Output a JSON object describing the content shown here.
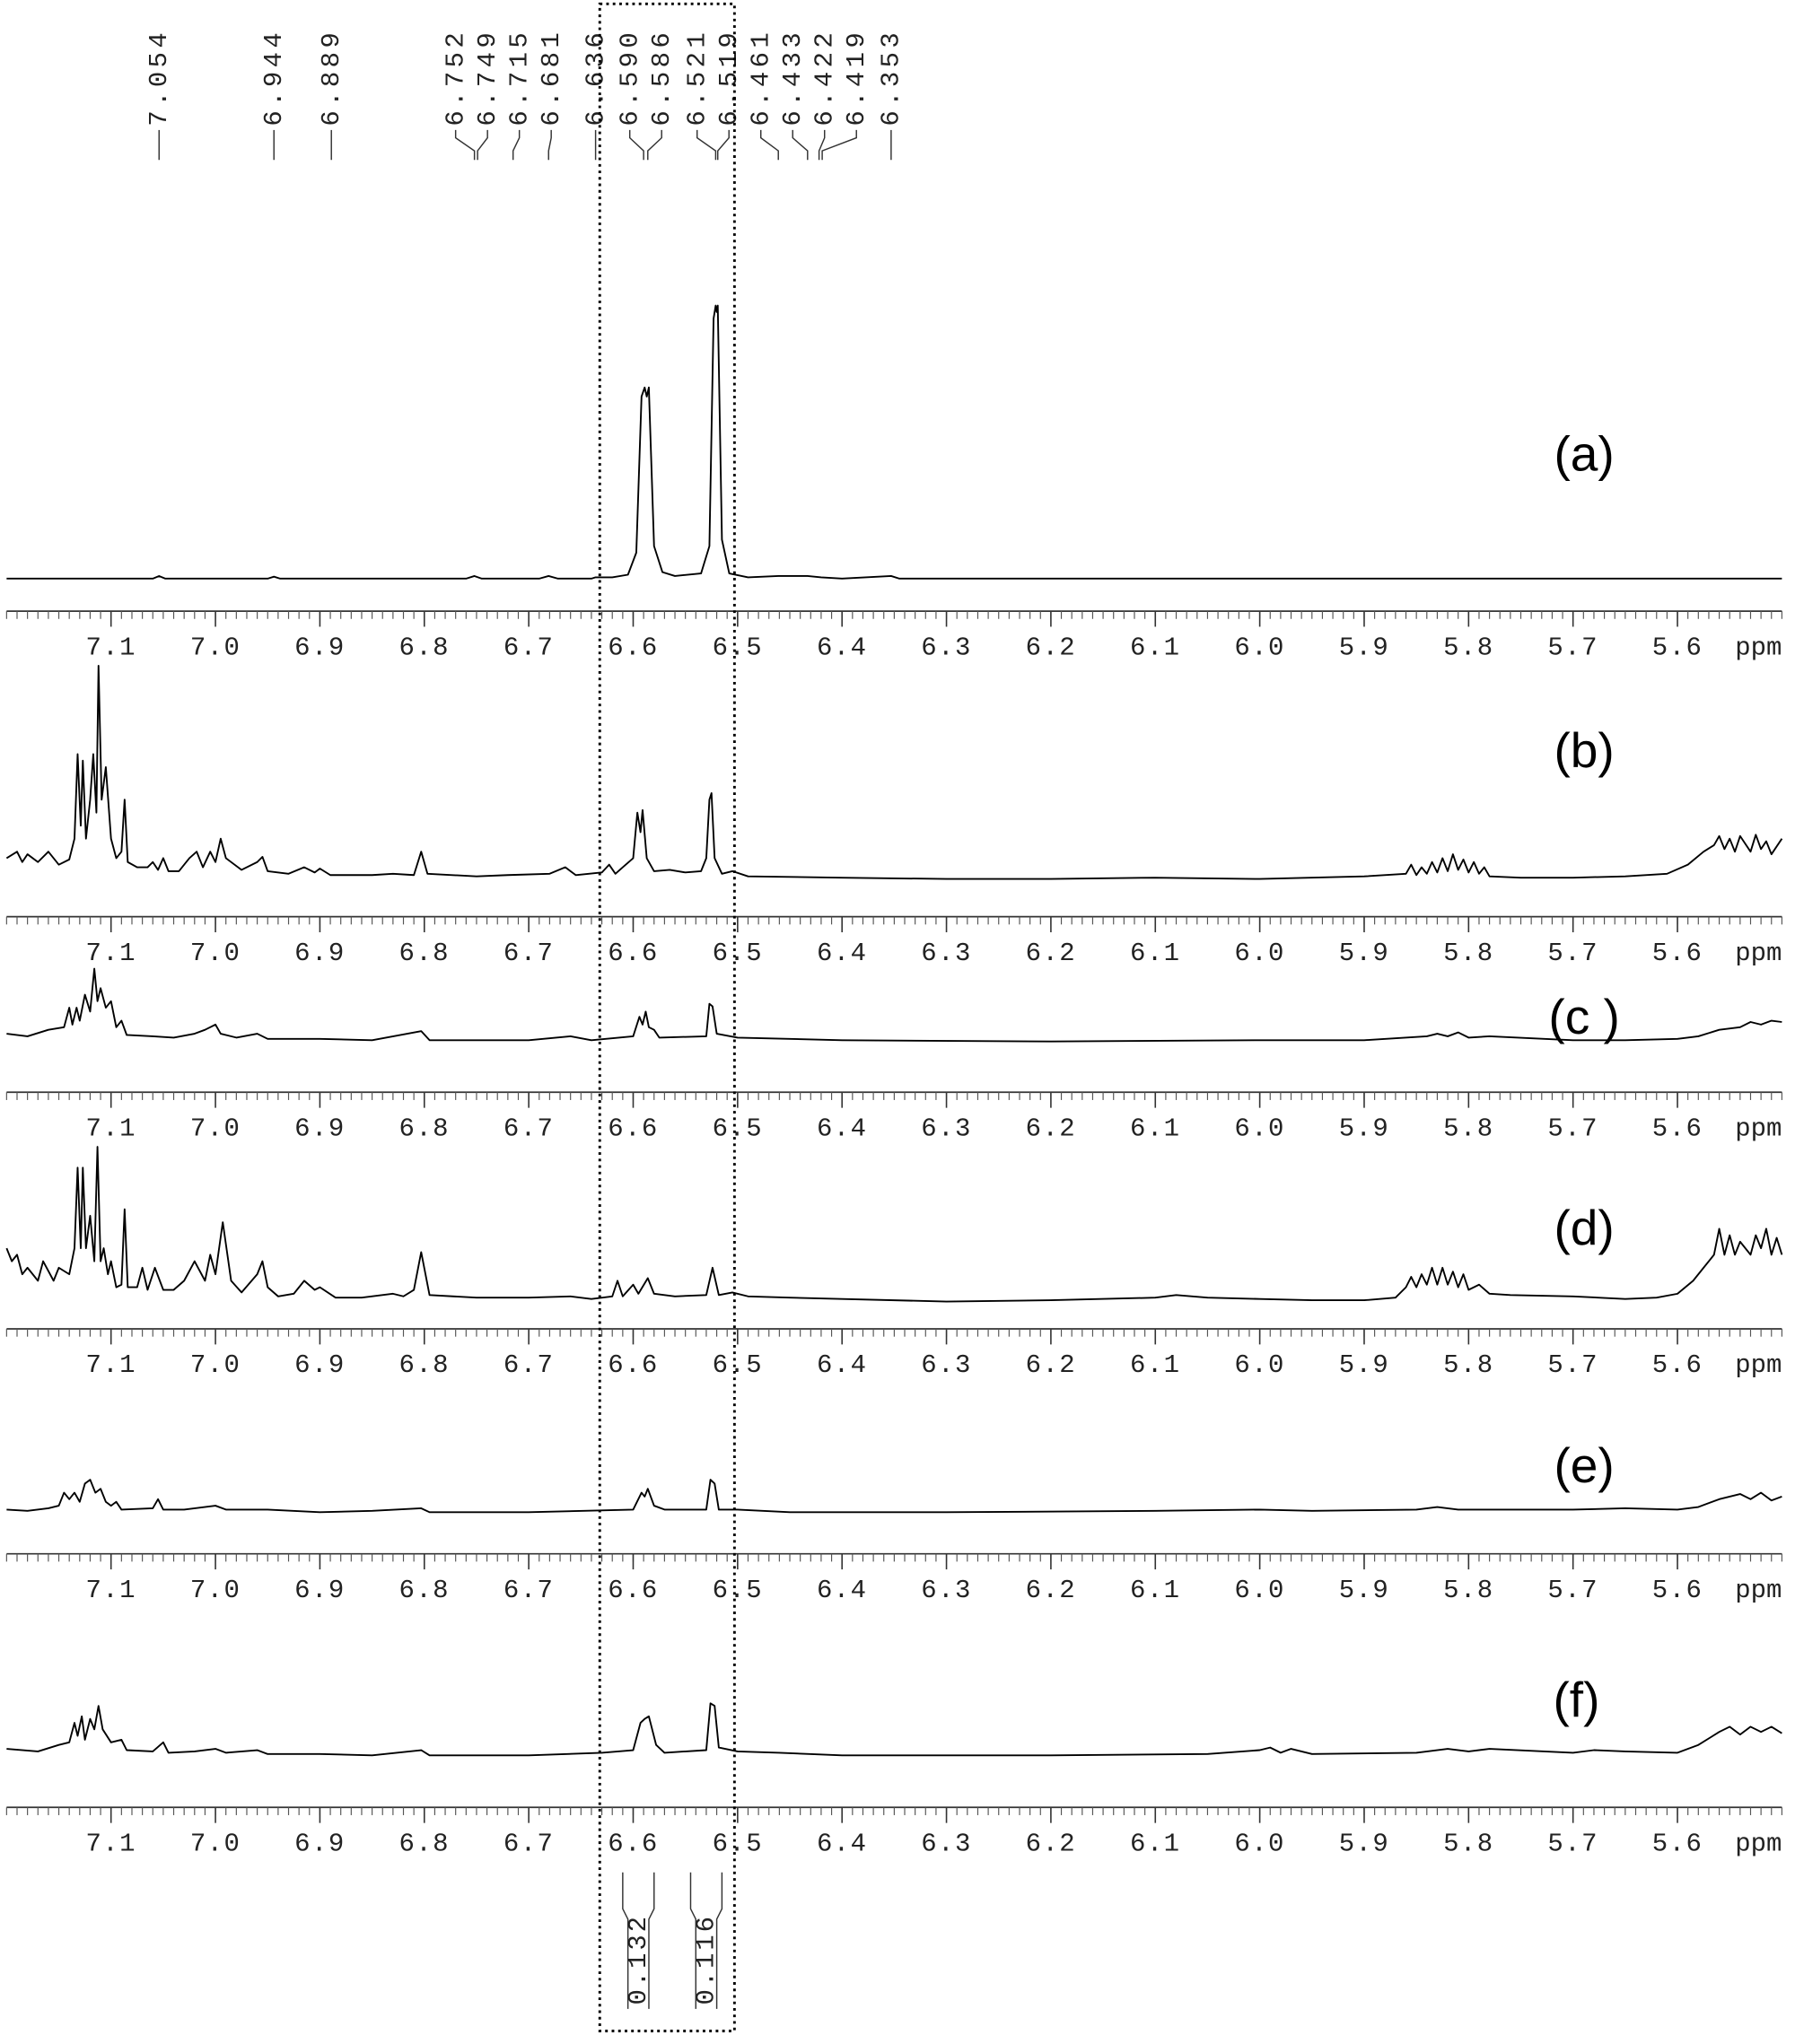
{
  "highlight_range": [
    6.632,
    6.503
  ],
  "chart_data": [
    {
      "type": "line",
      "label": "(a)",
      "xlabel": "ppm",
      "color": "#000000",
      "xlim": [
        7.2,
        5.5
      ],
      "ylim": [
        -10,
        220
      ],
      "minor_tick_step": 0.01,
      "xticks": [
        7.1,
        {
          "value": 7,
          "label": "7.0"
        },
        6.9,
        6.8,
        6.7,
        6.6,
        6.5,
        6.4,
        6.3,
        6.2,
        6.1,
        {
          "value": 6,
          "label": "6.0"
        },
        5.9,
        5.8,
        5.7,
        5.6
      ],
      "peak_labels": [
        7.054,
        6.944,
        6.889,
        6.752,
        6.749,
        6.715,
        6.681,
        6.636,
        {
          "value": 6.59,
          "label": "6.590"
        },
        6.586,
        6.521,
        6.519,
        6.461,
        6.433,
        6.422,
        6.419,
        6.353
      ],
      "x": [
        7.2,
        7.06,
        7.054,
        7.048,
        6.95,
        6.944,
        6.938,
        6.76,
        6.752,
        6.745,
        6.69,
        6.681,
        6.672,
        6.64,
        6.636,
        6.62,
        6.605,
        6.597,
        6.592,
        6.589,
        6.587,
        6.585,
        6.58,
        6.572,
        6.56,
        6.535,
        6.527,
        6.523,
        6.521,
        6.52,
        6.519,
        6.515,
        6.508,
        6.49,
        6.461,
        6.433,
        6.42,
        6.4,
        6.353,
        6.345,
        5.5
      ],
      "values": [
        0,
        0,
        2,
        0,
        0,
        1.5,
        0,
        0,
        2,
        0,
        0,
        2,
        0,
        0,
        1,
        1,
        3,
        20,
        140,
        147,
        140,
        147,
        25,
        5,
        2,
        4,
        25,
        200,
        210,
        205,
        210,
        30,
        4,
        1,
        2,
        2,
        1,
        0,
        2,
        0,
        0
      ]
    },
    {
      "type": "line",
      "label": "(b)",
      "xlabel": "ppm",
      "color": "#000000",
      "xlim": [
        7.2,
        5.5
      ],
      "ylim": [
        -15,
        175
      ],
      "minor_tick_step": 0.01,
      "xticks": [
        7.1,
        {
          "value": 7,
          "label": "7.0"
        },
        6.9,
        6.8,
        6.7,
        6.6,
        6.5,
        6.4,
        6.3,
        6.2,
        6.1,
        {
          "value": 6,
          "label": "6.0"
        },
        5.9,
        5.8,
        5.7,
        5.6
      ],
      "x": [
        7.2,
        7.19,
        7.185,
        7.18,
        7.17,
        7.16,
        7.15,
        7.14,
        7.135,
        7.132,
        7.129,
        7.127,
        7.124,
        7.12,
        7.117,
        7.114,
        7.112,
        7.109,
        7.105,
        7.1,
        7.095,
        7.09,
        7.087,
        7.084,
        7.075,
        7.065,
        7.06,
        7.055,
        7.05,
        7.045,
        7.035,
        7.025,
        7.018,
        7.012,
        7.005,
        7.0,
        6.995,
        6.99,
        6.975,
        6.96,
        6.955,
        6.95,
        6.93,
        6.915,
        6.905,
        6.9,
        6.89,
        6.85,
        6.83,
        6.81,
        6.803,
        6.797,
        6.75,
        6.72,
        6.68,
        6.665,
        6.655,
        6.63,
        6.623,
        6.617,
        6.61,
        6.6,
        6.596,
        6.593,
        6.591,
        6.587,
        6.58,
        6.565,
        6.55,
        6.535,
        6.53,
        6.527,
        6.525,
        6.522,
        6.515,
        6.505,
        6.49,
        6.4,
        6.3,
        6.2,
        6.1,
        6,
        5.9,
        5.86,
        5.855,
        5.85,
        5.845,
        5.84,
        5.835,
        5.83,
        5.825,
        5.82,
        5.815,
        5.81,
        5.805,
        5.8,
        5.795,
        5.79,
        5.785,
        5.78,
        5.75,
        5.7,
        5.65,
        5.61,
        5.59,
        5.575,
        5.565,
        5.56,
        5.555,
        5.55,
        5.545,
        5.54,
        5.53,
        5.525,
        5.52,
        5.515,
        5.51,
        5.5
      ],
      "values": [
        15,
        20,
        12,
        18,
        12,
        20,
        10,
        14,
        30,
        95,
        40,
        90,
        30,
        60,
        95,
        50,
        163,
        60,
        85,
        30,
        15,
        20,
        60,
        12,
        8,
        8,
        12,
        6,
        15,
        5,
        5,
        15,
        20,
        8,
        20,
        12,
        30,
        15,
        6,
        12,
        16,
        5,
        3,
        8,
        4,
        7,
        2,
        2,
        3,
        2,
        20,
        3,
        1,
        2,
        3,
        8,
        2,
        4,
        10,
        3,
        8,
        15,
        50,
        35,
        52,
        15,
        5,
        6,
        4,
        5,
        15,
        60,
        65,
        15,
        3,
        5,
        1,
        0,
        -1,
        -1,
        0,
        -1,
        1,
        3,
        10,
        2,
        8,
        3,
        12,
        4,
        15,
        5,
        18,
        6,
        14,
        4,
        12,
        3,
        8,
        1,
        0,
        0,
        1,
        3,
        10,
        20,
        25,
        32,
        22,
        30,
        20,
        32,
        20,
        33,
        22,
        28,
        18,
        30
      ]
    },
    {
      "type": "line",
      "label": "(c )",
      "xlabel": "ppm",
      "color": "#000000",
      "xlim": [
        7.2,
        5.5
      ],
      "ylim": [
        -15,
        60
      ],
      "minor_tick_step": 0.01,
      "xticks": [
        7.1,
        {
          "value": 7,
          "label": "7.0"
        },
        6.9,
        6.8,
        6.7,
        6.6,
        6.5,
        6.4,
        6.3,
        6.2,
        6.1,
        {
          "value": 6,
          "label": "6.0"
        },
        5.9,
        5.8,
        5.7,
        5.6
      ],
      "x": [
        7.2,
        7.18,
        7.16,
        7.145,
        7.14,
        7.137,
        7.133,
        7.13,
        7.125,
        7.12,
        7.116,
        7.113,
        7.11,
        7.105,
        7.1,
        7.095,
        7.09,
        7.085,
        7.06,
        7.04,
        7.02,
        7.01,
        7.0,
        6.995,
        6.98,
        6.96,
        6.95,
        6.9,
        6.85,
        6.803,
        6.795,
        6.7,
        6.66,
        6.64,
        6.6,
        6.594,
        6.591,
        6.588,
        6.585,
        6.58,
        6.575,
        6.53,
        6.527,
        6.524,
        6.52,
        6.5,
        6.4,
        6.2,
        6,
        5.9,
        5.84,
        5.83,
        5.82,
        5.81,
        5.8,
        5.78,
        5.7,
        5.65,
        5.6,
        5.58,
        5.56,
        5.54,
        5.53,
        5.52,
        5.51,
        5.5
      ],
      "values": [
        5,
        3,
        8,
        10,
        25,
        12,
        25,
        15,
        35,
        22,
        55,
        30,
        40,
        25,
        30,
        10,
        15,
        4,
        3,
        2,
        5,
        8,
        12,
        5,
        2,
        5,
        1,
        1,
        0,
        7,
        0,
        0,
        3,
        0,
        3,
        18,
        12,
        22,
        10,
        8,
        2,
        3,
        28,
        26,
        5,
        2,
        0,
        -1,
        0,
        0,
        3,
        5,
        3,
        6,
        2,
        3,
        0,
        0,
        1,
        3,
        8,
        10,
        14,
        12,
        15,
        14
      ]
    },
    {
      "type": "line",
      "label": "(d)",
      "xlabel": "ppm",
      "color": "#000000",
      "xlim": [
        7.2,
        5.5
      ],
      "ylim": [
        -10,
        130
      ],
      "minor_tick_step": 0.01,
      "xticks": [
        7.1,
        {
          "value": 7,
          "label": "7.0"
        },
        6.9,
        6.8,
        6.7,
        6.6,
        6.5,
        6.4,
        6.3,
        6.2,
        6.1,
        {
          "value": 6,
          "label": "6.0"
        },
        5.9,
        5.8,
        5.7,
        5.6
      ],
      "x": [
        7.2,
        7.195,
        7.19,
        7.185,
        7.18,
        7.17,
        7.165,
        7.155,
        7.15,
        7.14,
        7.135,
        7.132,
        7.129,
        7.127,
        7.124,
        7.12,
        7.116,
        7.113,
        7.11,
        7.107,
        7.103,
        7.1,
        7.095,
        7.09,
        7.087,
        7.084,
        7.075,
        7.07,
        7.065,
        7.058,
        7.05,
        7.04,
        7.03,
        7.02,
        7.01,
        7.005,
        7.0,
        6.993,
        6.985,
        6.975,
        6.96,
        6.955,
        6.95,
        6.94,
        6.925,
        6.915,
        6.905,
        6.9,
        6.885,
        6.86,
        6.83,
        6.82,
        6.81,
        6.803,
        6.795,
        6.75,
        6.7,
        6.66,
        6.64,
        6.62,
        6.615,
        6.61,
        6.6,
        6.595,
        6.586,
        6.58,
        6.56,
        6.53,
        6.524,
        6.518,
        6.505,
        6.49,
        6.45,
        6.4,
        6.3,
        6.2,
        6.1,
        6.08,
        6.05,
        6,
        5.95,
        5.9,
        5.87,
        5.86,
        5.855,
        5.85,
        5.845,
        5.84,
        5.835,
        5.83,
        5.825,
        5.82,
        5.815,
        5.81,
        5.805,
        5.8,
        5.79,
        5.78,
        5.76,
        5.7,
        5.65,
        5.62,
        5.6,
        5.585,
        5.575,
        5.565,
        5.56,
        5.555,
        5.55,
        5.545,
        5.54,
        5.53,
        5.525,
        5.52,
        5.515,
        5.51,
        5.505,
        5.5
      ],
      "values": [
        40,
        30,
        35,
        20,
        25,
        15,
        30,
        15,
        25,
        20,
        40,
        102,
        40,
        102,
        40,
        65,
        30,
        118,
        30,
        40,
        20,
        30,
        10,
        12,
        70,
        10,
        10,
        25,
        8,
        25,
        8,
        8,
        15,
        30,
        15,
        35,
        20,
        60,
        15,
        6,
        20,
        30,
        10,
        3,
        5,
        15,
        8,
        10,
        2,
        2,
        5,
        3,
        8,
        37,
        4,
        2,
        2,
        3,
        1,
        3,
        15,
        3,
        12,
        5,
        17,
        5,
        3,
        4,
        25,
        4,
        6,
        3,
        2,
        1,
        -1,
        0,
        2,
        4,
        2,
        1,
        0,
        0,
        2,
        10,
        18,
        10,
        20,
        12,
        25,
        12,
        25,
        12,
        22,
        10,
        20,
        8,
        12,
        5,
        4,
        3,
        1,
        2,
        5,
        15,
        25,
        35,
        55,
        35,
        50,
        35,
        45,
        35,
        50,
        40,
        55,
        35,
        48,
        35
      ]
    },
    {
      "type": "line",
      "label": "(e)",
      "xlabel": "ppm",
      "color": "#000000",
      "xlim": [
        7.2,
        5.5
      ],
      "ylim": [
        -12,
        43
      ],
      "minor_tick_step": 0.01,
      "xticks": [
        7.1,
        {
          "value": 7,
          "label": "7.0"
        },
        6.9,
        6.8,
        6.7,
        6.6,
        6.5,
        6.4,
        6.3,
        6.2,
        6.1,
        {
          "value": 6,
          "label": "6.0"
        },
        5.9,
        5.8,
        5.7,
        5.6
      ],
      "x": [
        7.2,
        7.18,
        7.16,
        7.15,
        7.145,
        7.14,
        7.135,
        7.13,
        7.125,
        7.12,
        7.115,
        7.11,
        7.105,
        7.1,
        7.095,
        7.09,
        7.06,
        7.055,
        7.05,
        7.03,
        7.0,
        6.99,
        6.95,
        6.9,
        6.85,
        6.803,
        6.795,
        6.7,
        6.6,
        6.592,
        6.589,
        6.586,
        6.58,
        6.57,
        6.53,
        6.526,
        6.522,
        6.518,
        6.5,
        6.45,
        6.3,
        6.1,
        6,
        5.95,
        5.85,
        5.83,
        5.81,
        5.7,
        5.65,
        5.6,
        5.58,
        5.56,
        5.54,
        5.53,
        5.52,
        5.51,
        5.5
      ],
      "values": [
        2,
        1,
        3,
        5,
        15,
        10,
        15,
        8,
        22,
        25,
        15,
        18,
        8,
        5,
        8,
        2,
        3,
        10,
        2,
        2,
        5,
        2,
        2,
        0,
        1,
        3,
        0,
        0,
        2,
        15,
        12,
        18,
        5,
        2,
        2,
        25,
        22,
        2,
        2,
        0,
        0,
        1,
        2,
        1,
        2,
        4,
        2,
        2,
        3,
        2,
        4,
        10,
        14,
        10,
        15,
        9,
        12
      ]
    },
    {
      "type": "line",
      "label": "(f)",
      "xlabel": "ppm",
      "color": "#000000",
      "xlim": [
        7.2,
        5.5
      ],
      "ylim": [
        -10,
        50
      ],
      "minor_tick_step": 0.01,
      "xticks": [
        7.1,
        {
          "value": 7,
          "label": "7.0"
        },
        6.9,
        6.8,
        6.7,
        6.6,
        6.5,
        6.4,
        6.3,
        6.2,
        6.1,
        {
          "value": 6,
          "label": "6.0"
        },
        5.9,
        5.8,
        5.7,
        5.6
      ],
      "integrals": [
        {
          "value": 0.132,
          "range": [
            6.61,
            6.58
          ]
        },
        {
          "value": 0.116,
          "range": [
            6.545,
            6.515
          ]
        }
      ],
      "x": [
        7.2,
        7.17,
        7.15,
        7.14,
        7.135,
        7.132,
        7.128,
        7.125,
        7.12,
        7.116,
        7.112,
        7.108,
        7.1,
        7.09,
        7.085,
        7.06,
        7.05,
        7.045,
        7.02,
        7.0,
        6.99,
        6.96,
        6.95,
        6.9,
        6.85,
        6.803,
        6.795,
        6.7,
        6.63,
        6.6,
        6.593,
        6.589,
        6.585,
        6.578,
        6.57,
        6.53,
        6.526,
        6.522,
        6.518,
        6.5,
        6.46,
        6.4,
        6.2,
        6.05,
        6,
        5.99,
        5.98,
        5.97,
        5.95,
        5.85,
        5.82,
        5.8,
        5.78,
        5.7,
        5.68,
        5.65,
        5.6,
        5.58,
        5.56,
        5.55,
        5.54,
        5.53,
        5.52,
        5.51,
        5.5
      ],
      "values": [
        5,
        3,
        8,
        10,
        25,
        15,
        30,
        12,
        28,
        20,
        38,
        20,
        10,
        12,
        4,
        3,
        10,
        2,
        3,
        5,
        2,
        4,
        1,
        1,
        0,
        4,
        0,
        0,
        2,
        4,
        25,
        28,
        30,
        8,
        2,
        4,
        40,
        38,
        6,
        3,
        2,
        0,
        0,
        1,
        4,
        6,
        2,
        5,
        1,
        2,
        5,
        3,
        5,
        2,
        4,
        3,
        2,
        8,
        18,
        22,
        16,
        22,
        18,
        22,
        17
      ]
    }
  ]
}
